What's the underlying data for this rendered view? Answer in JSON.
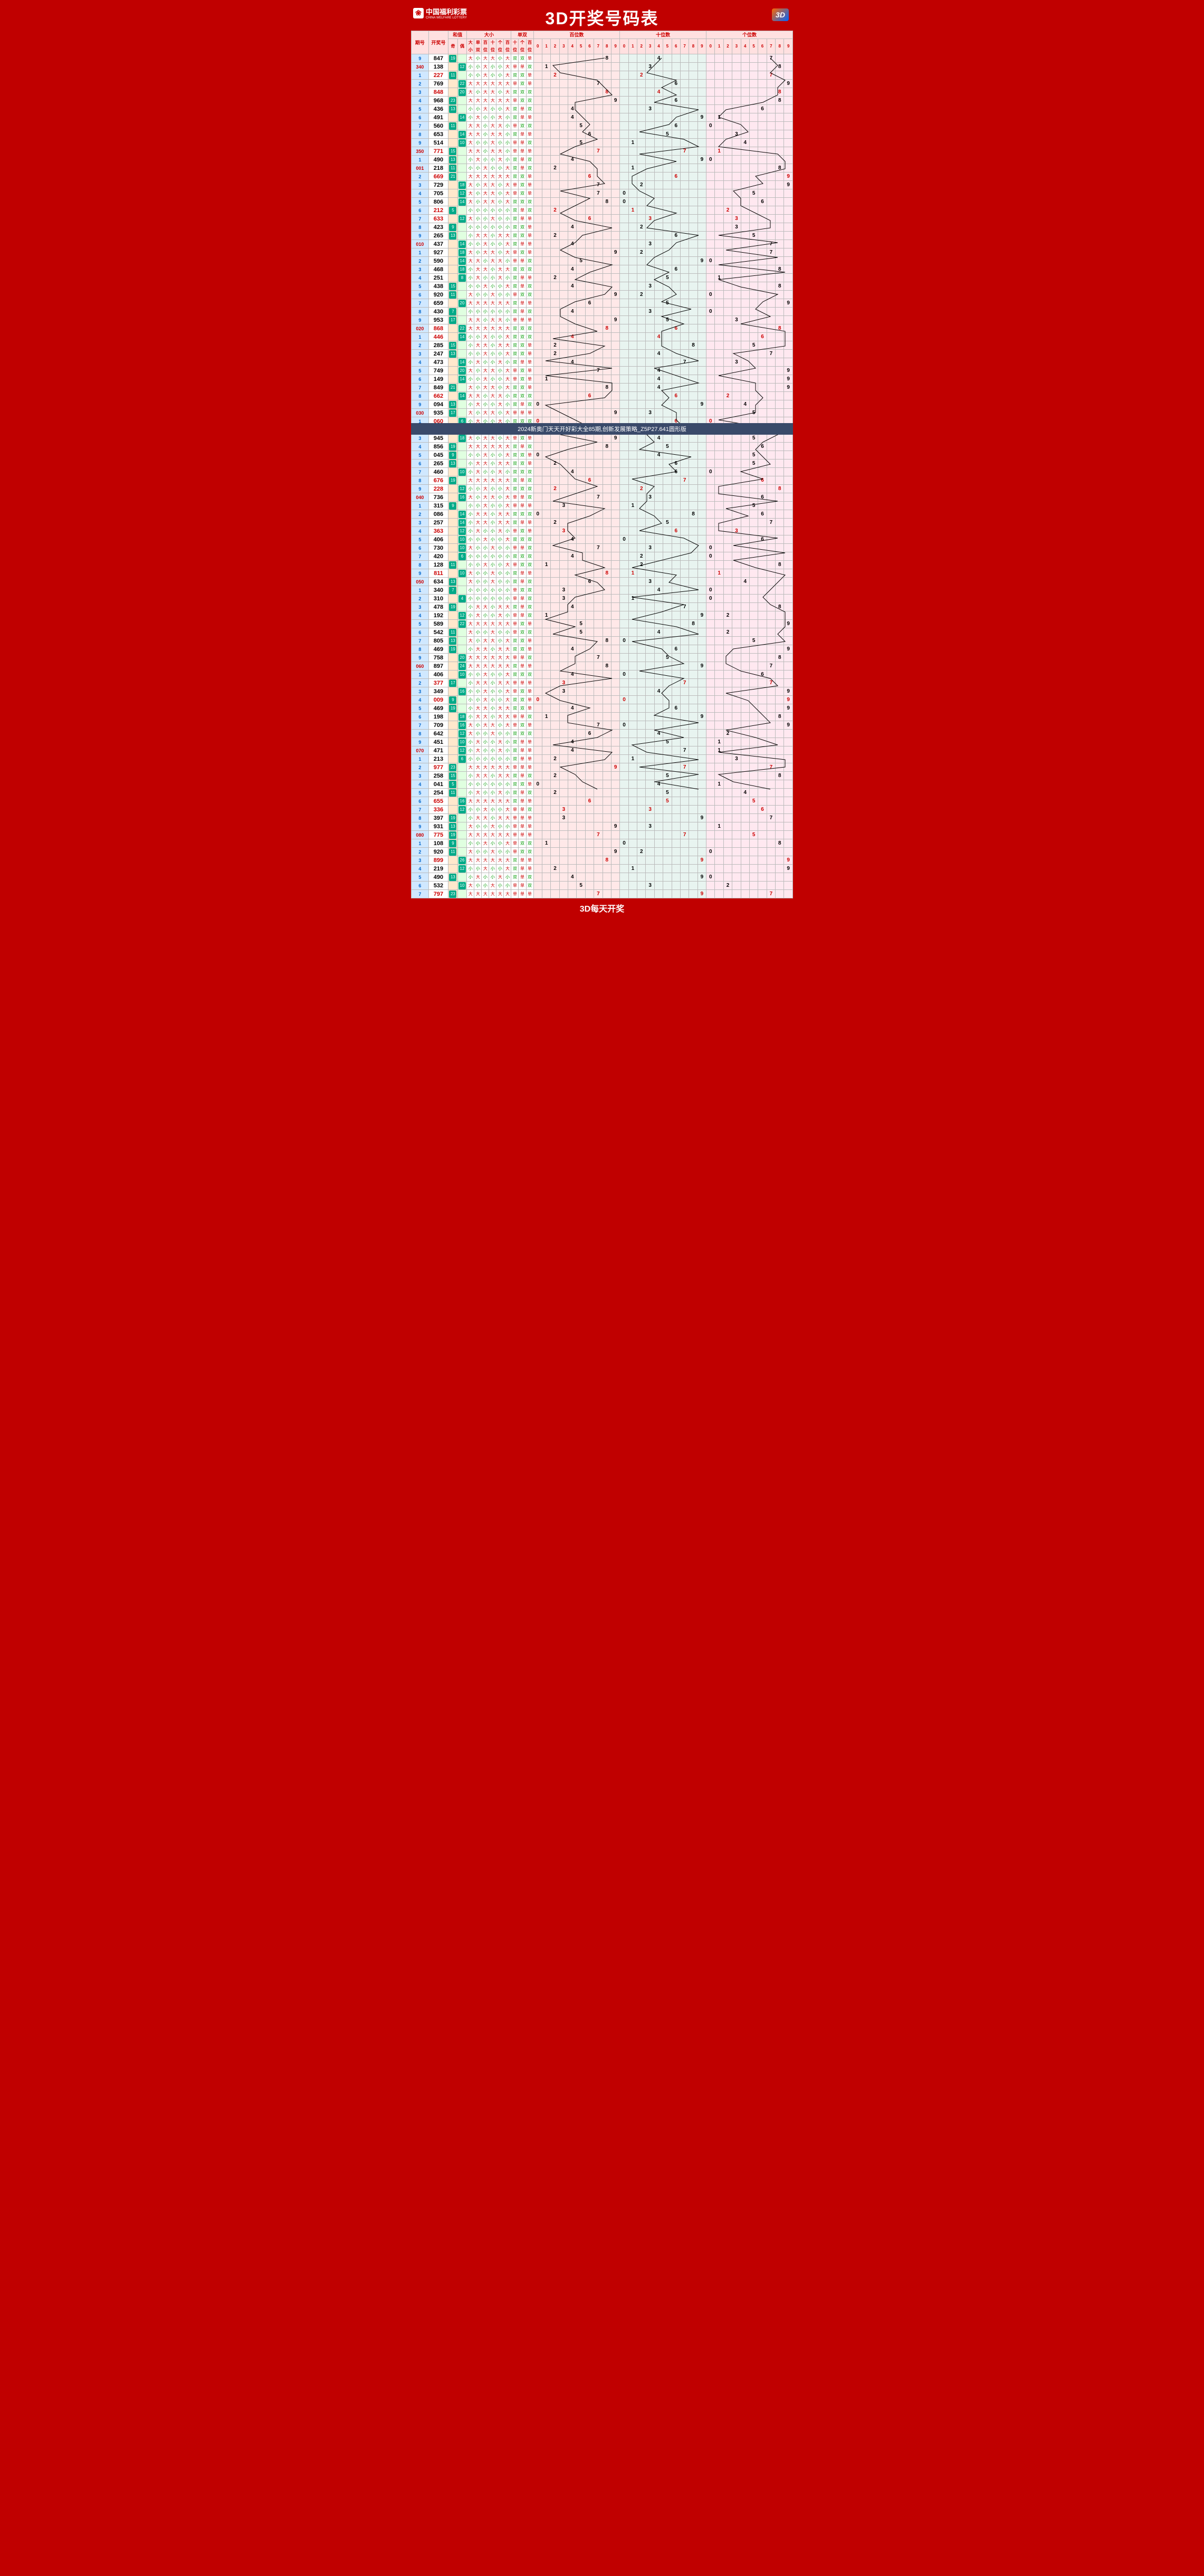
{
  "title": "3D开奖号码表",
  "logo_text": "中国福利彩票",
  "logo_sub": "CHINA WELFARE LOTTERY",
  "footer": "3D每天开奖",
  "overlay_text": "2024新奥门天天开好彩大全85期,创新发展策略_Z5P27.641圆形版",
  "overlay_row": 29,
  "header_groups": [
    "期号",
    "开奖号",
    "和值",
    "大小",
    "单双",
    "百位数",
    "十位数",
    "个位数"
  ],
  "sub_headers": {
    "sum": [
      "奇",
      "偶"
    ],
    "ds": [
      "大小",
      "单双",
      "百位",
      "十位",
      "个位"
    ],
    "oe": [
      "百位",
      "十位",
      "个位"
    ],
    "digits": [
      "0",
      "1",
      "2",
      "3",
      "4",
      "5",
      "6",
      "7",
      "8",
      "9"
    ]
  },
  "colors": {
    "frame": "#c00000",
    "period_bg": "#d0e8ff",
    "sum_odd_bg": "#ffe8cc",
    "sum_even_bg": "#e0ffe0",
    "sum_badge": "#00aa88",
    "trend1_bg": "#ffe8e8",
    "trend2_bg": "#e8f4f0",
    "trend3_bg": "#ffe8f0",
    "red": "#c00",
    "green": "#090"
  },
  "rows": [
    {
      "p": "9",
      "n": "847",
      "red": false,
      "pr": false
    },
    {
      "p": "340",
      "n": "138",
      "red": false,
      "pr": true
    },
    {
      "p": "1",
      "n": "227",
      "red": true,
      "pr": false
    },
    {
      "p": "2",
      "n": "769",
      "red": false,
      "pr": false
    },
    {
      "p": "3",
      "n": "848",
      "red": true,
      "pr": false
    },
    {
      "p": "4",
      "n": "968",
      "red": false,
      "pr": false
    },
    {
      "p": "5",
      "n": "436",
      "red": false,
      "pr": false
    },
    {
      "p": "6",
      "n": "491",
      "red": false,
      "pr": false
    },
    {
      "p": "7",
      "n": "560",
      "red": false,
      "pr": false
    },
    {
      "p": "8",
      "n": "653",
      "red": false,
      "pr": false
    },
    {
      "p": "9",
      "n": "514",
      "red": false,
      "pr": false
    },
    {
      "p": "350",
      "n": "771",
      "red": true,
      "pr": true
    },
    {
      "p": "1",
      "n": "490",
      "red": false,
      "pr": false
    },
    {
      "p": "001",
      "n": "218",
      "red": false,
      "pr": true
    },
    {
      "p": "2",
      "n": "669",
      "red": true,
      "pr": false
    },
    {
      "p": "3",
      "n": "729",
      "red": false,
      "pr": false
    },
    {
      "p": "4",
      "n": "705",
      "red": false,
      "pr": false
    },
    {
      "p": "5",
      "n": "806",
      "red": false,
      "pr": false
    },
    {
      "p": "6",
      "n": "212",
      "red": true,
      "pr": false
    },
    {
      "p": "7",
      "n": "633",
      "red": true,
      "pr": false
    },
    {
      "p": "8",
      "n": "423",
      "red": false,
      "pr": false
    },
    {
      "p": "9",
      "n": "265",
      "red": false,
      "pr": false
    },
    {
      "p": "010",
      "n": "437",
      "red": false,
      "pr": true
    },
    {
      "p": "1",
      "n": "927",
      "red": false,
      "pr": false
    },
    {
      "p": "2",
      "n": "590",
      "red": false,
      "pr": false
    },
    {
      "p": "3",
      "n": "468",
      "red": false,
      "pr": false
    },
    {
      "p": "4",
      "n": "251",
      "red": false,
      "pr": false
    },
    {
      "p": "5",
      "n": "438",
      "red": false,
      "pr": false
    },
    {
      "p": "6",
      "n": "920",
      "red": false,
      "pr": false
    },
    {
      "p": "7",
      "n": "659",
      "red": false,
      "pr": false
    },
    {
      "p": "8",
      "n": "430",
      "red": false,
      "pr": false
    },
    {
      "p": "9",
      "n": "953",
      "red": false,
      "pr": false
    },
    {
      "p": "020",
      "n": "868",
      "red": true,
      "pr": true
    },
    {
      "p": "1",
      "n": "446",
      "red": true,
      "pr": false
    },
    {
      "p": "2",
      "n": "285",
      "red": false,
      "pr": false
    },
    {
      "p": "3",
      "n": "247",
      "red": false,
      "pr": false
    },
    {
      "p": "4",
      "n": "473",
      "red": false,
      "pr": false
    },
    {
      "p": "5",
      "n": "749",
      "red": false,
      "pr": false
    },
    {
      "p": "6",
      "n": "149",
      "red": false,
      "pr": false
    },
    {
      "p": "7",
      "n": "849",
      "red": false,
      "pr": false
    },
    {
      "p": "8",
      "n": "662",
      "red": true,
      "pr": false
    },
    {
      "p": "9",
      "n": "094",
      "red": false,
      "pr": false
    },
    {
      "p": "030",
      "n": "935",
      "red": false,
      "pr": true
    },
    {
      "p": "1",
      "n": "060",
      "red": true,
      "pr": false
    },
    {
      "p": "2",
      "n": "995",
      "red": true,
      "pr": false
    },
    {
      "p": "3",
      "n": "945",
      "red": false,
      "pr": false
    },
    {
      "p": "4",
      "n": "856",
      "red": false,
      "pr": false
    },
    {
      "p": "5",
      "n": "045",
      "red": false,
      "pr": false
    },
    {
      "p": "6",
      "n": "265",
      "red": false,
      "pr": false
    },
    {
      "p": "7",
      "n": "460",
      "red": false,
      "pr": false
    },
    {
      "p": "8",
      "n": "676",
      "red": true,
      "pr": false
    },
    {
      "p": "9",
      "n": "228",
      "red": true,
      "pr": false
    },
    {
      "p": "040",
      "n": "736",
      "red": false,
      "pr": true
    },
    {
      "p": "1",
      "n": "315",
      "red": false,
      "pr": false
    },
    {
      "p": "2",
      "n": "086",
      "red": false,
      "pr": false
    },
    {
      "p": "3",
      "n": "257",
      "red": false,
      "pr": false
    },
    {
      "p": "4",
      "n": "363",
      "red": true,
      "pr": false
    },
    {
      "p": "5",
      "n": "406",
      "red": false,
      "pr": false
    },
    {
      "p": "6",
      "n": "730",
      "red": false,
      "pr": false
    },
    {
      "p": "7",
      "n": "420",
      "red": false,
      "pr": false
    },
    {
      "p": "8",
      "n": "128",
      "red": false,
      "pr": false
    },
    {
      "p": "9",
      "n": "811",
      "red": true,
      "pr": false
    },
    {
      "p": "050",
      "n": "634",
      "red": false,
      "pr": true
    },
    {
      "p": "1",
      "n": "340",
      "red": false,
      "pr": false
    },
    {
      "p": "2",
      "n": "310",
      "red": false,
      "pr": false
    },
    {
      "p": "3",
      "n": "478",
      "red": false,
      "pr": false
    },
    {
      "p": "4",
      "n": "192",
      "red": false,
      "pr": false
    },
    {
      "p": "5",
      "n": "589",
      "red": false,
      "pr": false
    },
    {
      "p": "6",
      "n": "542",
      "red": false,
      "pr": false
    },
    {
      "p": "7",
      "n": "805",
      "red": false,
      "pr": false
    },
    {
      "p": "8",
      "n": "469",
      "red": false,
      "pr": false
    },
    {
      "p": "9",
      "n": "758",
      "red": false,
      "pr": false
    },
    {
      "p": "060",
      "n": "897",
      "red": false,
      "pr": true
    },
    {
      "p": "1",
      "n": "406",
      "red": false,
      "pr": false
    },
    {
      "p": "2",
      "n": "377",
      "red": true,
      "pr": false
    },
    {
      "p": "3",
      "n": "349",
      "red": false,
      "pr": false
    },
    {
      "p": "4",
      "n": "009",
      "red": true,
      "pr": false
    },
    {
      "p": "5",
      "n": "469",
      "red": false,
      "pr": false
    },
    {
      "p": "6",
      "n": "198",
      "red": false,
      "pr": false
    },
    {
      "p": "7",
      "n": "709",
      "red": false,
      "pr": false
    },
    {
      "p": "8",
      "n": "642",
      "red": false,
      "pr": false
    },
    {
      "p": "9",
      "n": "451",
      "red": false,
      "pr": false
    },
    {
      "p": "070",
      "n": "471",
      "red": false,
      "pr": true
    },
    {
      "p": "1",
      "n": "213",
      "red": false,
      "pr": false
    },
    {
      "p": "2",
      "n": "977",
      "red": true,
      "pr": false
    },
    {
      "p": "3",
      "n": "258",
      "red": false,
      "pr": false
    },
    {
      "p": "4",
      "n": "041",
      "red": false,
      "pr": false
    },
    {
      "p": "5",
      "n": "254",
      "red": false,
      "pr": false
    },
    {
      "p": "6",
      "n": "655",
      "red": true,
      "pr": false
    },
    {
      "p": "7",
      "n": "336",
      "red": true,
      "pr": false
    },
    {
      "p": "8",
      "n": "397",
      "red": false,
      "pr": false
    },
    {
      "p": "9",
      "n": "931",
      "red": false,
      "pr": false
    },
    {
      "p": "080",
      "n": "775",
      "red": true,
      "pr": true
    },
    {
      "p": "1",
      "n": "108",
      "red": false,
      "pr": false
    },
    {
      "p": "2",
      "n": "920",
      "red": false,
      "pr": false
    },
    {
      "p": "3",
      "n": "899",
      "red": true,
      "pr": false
    },
    {
      "p": "4",
      "n": "219",
      "red": false,
      "pr": false
    },
    {
      "p": "5",
      "n": "490",
      "red": false,
      "pr": false
    },
    {
      "p": "6",
      "n": "532",
      "red": false,
      "pr": false
    },
    {
      "p": "7",
      "n": "797",
      "red": true,
      "pr": false
    }
  ]
}
